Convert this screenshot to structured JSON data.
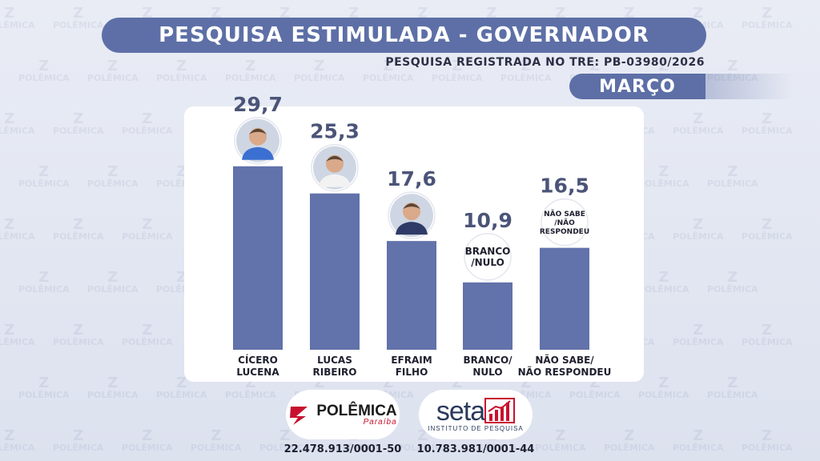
{
  "header": {
    "title": "PESQUISA ESTIMULADA - GOVERNADOR",
    "registration": "PESQUISA REGISTRADA NO TRE: PB-03980/2026",
    "month": "MARÇO"
  },
  "watermark": {
    "mark": "Z",
    "text": "POLÊMICA"
  },
  "chart_data": {
    "type": "bar",
    "categories": [
      "CÍCERO LUCENA",
      "LUCAS RIBEIRO",
      "EFRAIM FILHO",
      "BRANCO/ NULO",
      "NÃO SABE/ NÃO RESPONDEU"
    ],
    "category_lines": [
      [
        "CÍCERO",
        "LUCENA"
      ],
      [
        "LUCAS",
        "RIBEIRO"
      ],
      [
        "EFRAIM",
        "FILHO"
      ],
      [
        "BRANCO/",
        "NULO"
      ],
      [
        "NÃO SABE/",
        "NÃO RESPONDEU"
      ]
    ],
    "values": [
      29.7,
      25.3,
      17.6,
      10.9,
      16.5
    ],
    "value_labels": [
      "29,7",
      "25,3",
      "17,6",
      "10,9",
      "16,5"
    ],
    "badges": [
      {
        "kind": "photo"
      },
      {
        "kind": "photo"
      },
      {
        "kind": "photo"
      },
      {
        "kind": "text",
        "lines": [
          "BRANCO",
          "/NULO"
        ]
      },
      {
        "kind": "text",
        "lines": [
          "NÃO SABE",
          "/NÃO",
          "RESPONDEU"
        ]
      }
    ],
    "ylim": [
      0,
      32
    ],
    "grid": false,
    "bar_color": "#6272aa",
    "title": "",
    "xlabel": "",
    "ylabel": ""
  },
  "footer": {
    "polemica": {
      "name": "POLÊMICA",
      "sub": "Paraíba",
      "cnpj": "22.478.913/0001-50"
    },
    "seta": {
      "name": "seta",
      "sub": "INSTITUTO DE PESQUISA",
      "cnpj": "10.783.981/0001-44"
    }
  },
  "colors": {
    "primary": "#5d6fa6",
    "bar": "#6272aa",
    "accent_red": "#c8102e",
    "text_dark": "#2c2f45"
  }
}
